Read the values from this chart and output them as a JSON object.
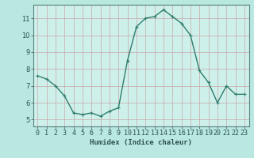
{
  "x": [
    0,
    1,
    2,
    3,
    4,
    5,
    6,
    7,
    8,
    9,
    10,
    11,
    12,
    13,
    14,
    15,
    16,
    17,
    18,
    19,
    20,
    21,
    22,
    23
  ],
  "y": [
    7.6,
    7.4,
    7.0,
    6.4,
    5.4,
    5.3,
    5.4,
    5.2,
    5.5,
    5.7,
    8.5,
    10.5,
    11.0,
    11.1,
    11.5,
    11.1,
    10.7,
    10.0,
    7.9,
    7.2,
    6.0,
    7.0,
    6.5,
    6.5
  ],
  "line_color": "#2e7d6e",
  "marker": "+",
  "marker_size": 3,
  "marker_lw": 0.8,
  "bg_color": "#b8e8e0",
  "plot_bg_color": "#cef0ea",
  "grid_color": "#c8a8a8",
  "xlabel": "Humidex (Indice chaleur)",
  "xlim": [
    -0.5,
    23.5
  ],
  "ylim": [
    4.6,
    11.8
  ],
  "yticks": [
    5,
    6,
    7,
    8,
    9,
    10,
    11
  ],
  "xticks": [
    0,
    1,
    2,
    3,
    4,
    5,
    6,
    7,
    8,
    9,
    10,
    11,
    12,
    13,
    14,
    15,
    16,
    17,
    18,
    19,
    20,
    21,
    22,
    23
  ],
  "xlabel_fontsize": 6.5,
  "tick_fontsize": 6.0,
  "line_width": 1.0
}
